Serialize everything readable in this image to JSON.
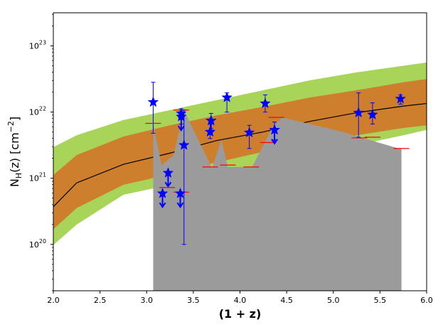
{
  "chart_data": {
    "type": "scatter",
    "title": "",
    "xlabel": "(1 + z)",
    "ylabel": "N_H(z) [cm^-2]",
    "xlim": [
      2.0,
      6.0
    ],
    "ylim_log10": [
      19.3,
      23.5
    ],
    "yscale": "log",
    "grid": false,
    "colors": {
      "outer_band": "#a8d45a",
      "inner_band": "#cd7f2e",
      "median_line": "#000000",
      "gray_area": "#9b9b9b",
      "stars": "#0000ff",
      "upper_limit_ticks": "#ff0000"
    },
    "x_ticks": [
      {
        "v": 2.0,
        "label": "2.0"
      },
      {
        "v": 2.5,
        "label": "2.5"
      },
      {
        "v": 3.0,
        "label": "3.0"
      },
      {
        "v": 3.5,
        "label": "3.5"
      },
      {
        "v": 4.0,
        "label": "4.0"
      },
      {
        "v": 4.5,
        "label": "4.5"
      },
      {
        "v": 5.0,
        "label": "5.0"
      },
      {
        "v": 5.5,
        "label": "5.5"
      },
      {
        "v": 6.0,
        "label": "6.0"
      }
    ],
    "y_ticks": [
      {
        "v": 20,
        "base": "10",
        "exp": "20"
      },
      {
        "v": 21,
        "base": "10",
        "exp": "21"
      },
      {
        "v": 22,
        "base": "10",
        "exp": "22"
      },
      {
        "v": 23,
        "base": "10",
        "exp": "23"
      }
    ],
    "band_x": [
      2.0,
      2.25,
      2.75,
      3.25,
      3.75,
      4.25,
      4.75,
      5.25,
      5.75,
      6.0
    ],
    "median_log": [
      20.57,
      20.93,
      21.21,
      21.38,
      21.57,
      21.7,
      21.86,
      21.99,
      22.09,
      22.13
    ],
    "inner_lo_log": [
      20.23,
      20.55,
      20.9,
      21.06,
      21.24,
      21.4,
      21.54,
      21.65,
      21.76,
      21.8
    ],
    "inner_hi_log": [
      21.05,
      21.35,
      21.63,
      21.8,
      21.95,
      22.08,
      22.22,
      22.33,
      22.45,
      22.5
    ],
    "outer_lo_log": [
      19.99,
      20.3,
      20.75,
      20.9,
      21.05,
      21.2,
      21.35,
      21.5,
      21.65,
      21.73
    ],
    "outer_hi_log": [
      21.47,
      21.65,
      21.88,
      22.03,
      22.18,
      22.33,
      22.48,
      22.6,
      22.7,
      22.75
    ],
    "gray_polygon": [
      [
        3.07,
        21.82
      ],
      [
        3.16,
        21.2
      ],
      [
        3.29,
        21.35
      ],
      [
        3.4,
        22.03
      ],
      [
        3.7,
        21.15
      ],
      [
        3.8,
        21.58
      ],
      [
        3.87,
        21.17
      ],
      [
        4.13,
        21.17
      ],
      [
        4.35,
        21.78
      ],
      [
        4.45,
        21.92
      ],
      [
        5.05,
        21.72
      ],
      [
        5.7,
        21.45
      ],
      [
        5.73,
        21.45
      ],
      [
        5.73,
        19.3
      ],
      [
        3.07,
        19.3
      ]
    ],
    "upper_limits": [
      {
        "x": 3.07,
        "y": 21.83
      },
      {
        "x": 3.22,
        "y": 20.86
      },
      {
        "x": 3.37,
        "y": 22.03
      },
      {
        "x": 3.37,
        "y": 20.79
      },
      {
        "x": 3.68,
        "y": 21.17
      },
      {
        "x": 3.87,
        "y": 21.2
      },
      {
        "x": 4.12,
        "y": 21.17
      },
      {
        "x": 4.3,
        "y": 21.54
      },
      {
        "x": 4.39,
        "y": 21.92
      },
      {
        "x": 5.28,
        "y": 21.61
      },
      {
        "x": 5.42,
        "y": 21.62
      },
      {
        "x": 5.73,
        "y": 21.45
      }
    ],
    "detections": [
      {
        "x": 3.07,
        "y": 22.15,
        "err_lo": 21.68,
        "err_hi": 22.45
      },
      {
        "x": 3.37,
        "y": 21.98,
        "err_lo": 21.82,
        "err_hi": 22.05
      },
      {
        "x": 3.4,
        "y": 21.5,
        "err_lo": 20.0,
        "err_hi": 22.03
      },
      {
        "x": 3.68,
        "y": 21.7,
        "err_lo": 21.6,
        "err_hi": 21.82
      },
      {
        "x": 3.69,
        "y": 21.87,
        "err_lo": 21.75,
        "err_hi": 21.98
      },
      {
        "x": 3.86,
        "y": 22.22,
        "err_lo": 22.0,
        "err_hi": 22.29
      },
      {
        "x": 4.1,
        "y": 21.69,
        "err_lo": 21.45,
        "err_hi": 21.8
      },
      {
        "x": 4.27,
        "y": 22.13,
        "err_lo": 22.0,
        "err_hi": 22.26
      },
      {
        "x": 4.37,
        "y": 21.73,
        "err_lo": 21.58,
        "err_hi": 21.85
      },
      {
        "x": 5.27,
        "y": 21.99,
        "err_lo": 21.62,
        "err_hi": 22.29
      },
      {
        "x": 5.42,
        "y": 21.96,
        "err_lo": 21.82,
        "err_hi": 22.14
      },
      {
        "x": 5.72,
        "y": 22.2,
        "err_lo": 22.12,
        "err_hi": 22.26
      }
    ],
    "upper_limit_stars": [
      {
        "x": 3.17,
        "y": 20.77
      },
      {
        "x": 3.23,
        "y": 21.08
      },
      {
        "x": 3.36,
        "y": 20.77
      },
      {
        "x": 3.37,
        "y": 21.93
      },
      {
        "x": 3.69,
        "y": 21.87
      },
      {
        "x": 4.37,
        "y": 21.73
      }
    ]
  }
}
